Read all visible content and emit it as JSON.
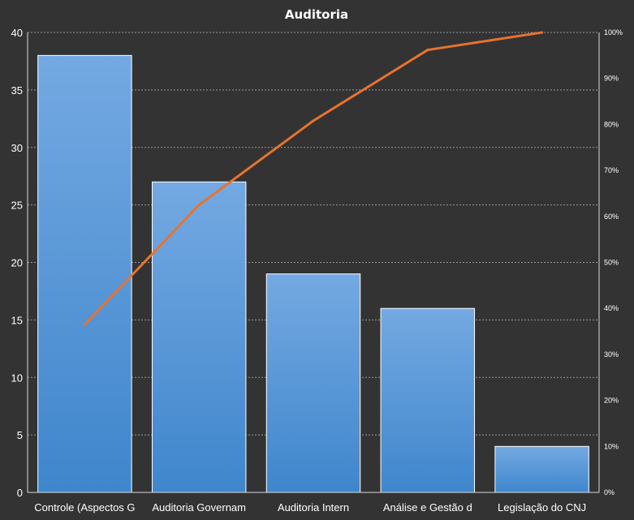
{
  "chart_data": {
    "type": "bar",
    "title": "Auditoria",
    "categories": [
      "Controle  (Aspectos G",
      "Auditoria  Governam",
      "Auditoria  Intern",
      "Análise e Gestão d",
      "Legislação do CNJ"
    ],
    "series": [
      {
        "values": [
          38,
          27,
          19,
          16,
          4
        ]
      },
      {
        "type": "line",
        "axis": "secondary",
        "values": [
          36.5,
          62.5,
          80.8,
          96.2,
          100
        ]
      }
    ],
    "ylim": [
      0,
      40
    ],
    "yticks": [
      "0",
      "5",
      "10",
      "15",
      "20",
      "25",
      "30",
      "35",
      "40"
    ],
    "y2lim": [
      0,
      100
    ],
    "y2ticks": [
      "0%",
      "10%",
      "20%",
      "30%",
      "40%",
      "50%",
      "60%",
      "70%",
      "80%",
      "90%",
      "100%"
    ],
    "grid": true,
    "legend": "none",
    "colors": {
      "background": "#333333",
      "bar_top": "#74a9e2",
      "bar_bottom": "#3f86cc",
      "line": "#e8732f",
      "text": "#ffffff"
    }
  }
}
